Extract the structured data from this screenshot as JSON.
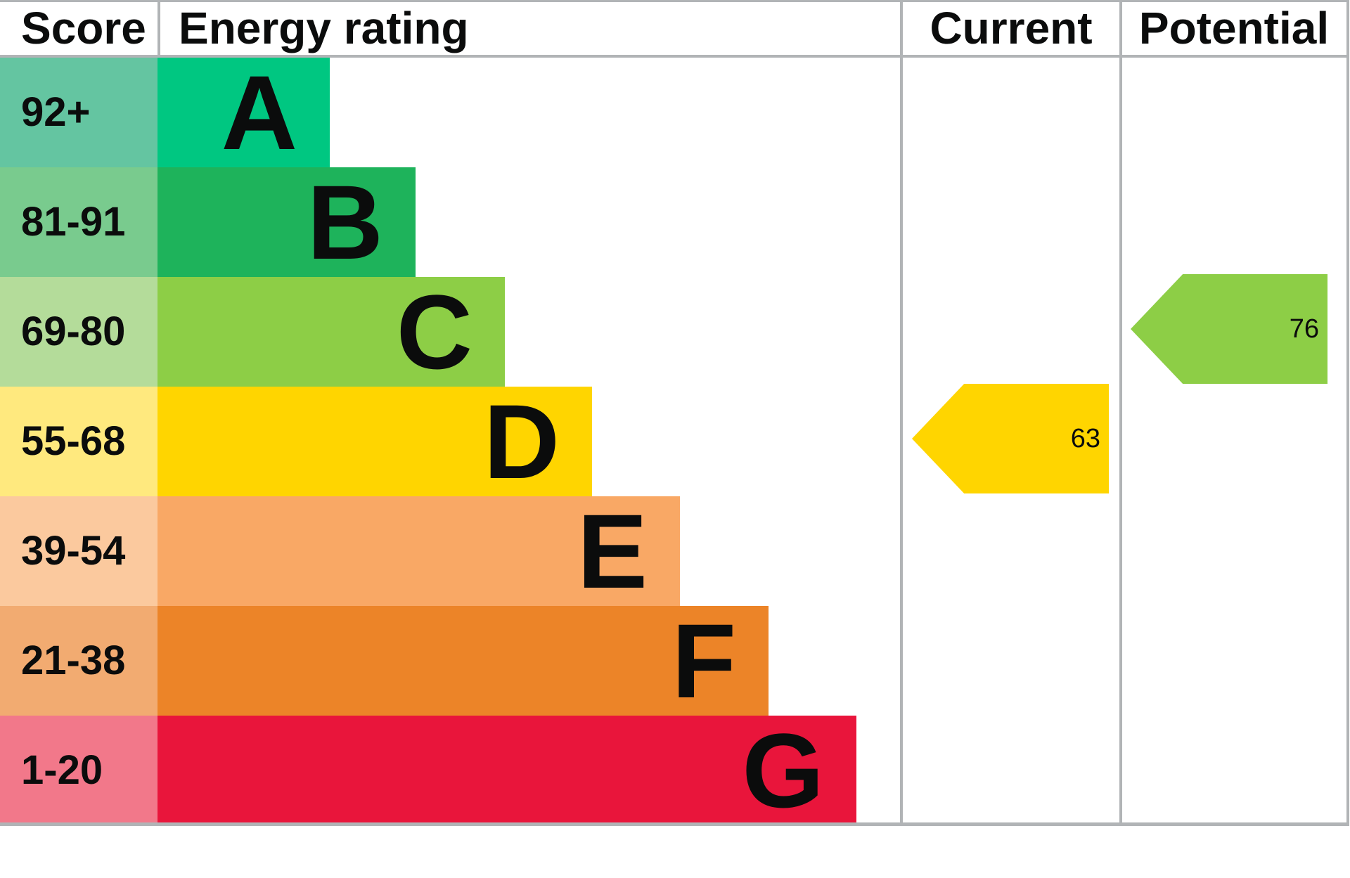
{
  "header": {
    "score": "Score",
    "energy_rating": "Energy rating",
    "current": "Current",
    "potential": "Potential"
  },
  "bands": [
    {
      "score_range": "92+",
      "letter": "A",
      "score_color": "#64c5a1",
      "bar_color": "#00c781"
    },
    {
      "score_range": "81-91",
      "letter": "B",
      "score_color": "#79cb8e",
      "bar_color": "#1eb35b"
    },
    {
      "score_range": "69-80",
      "letter": "C",
      "score_color": "#b4dc9a",
      "bar_color": "#8dce46"
    },
    {
      "score_range": "55-68",
      "letter": "D",
      "score_color": "#ffe97e",
      "bar_color": "#ffd500"
    },
    {
      "score_range": "39-54",
      "letter": "E",
      "score_color": "#fbc99e",
      "bar_color": "#f9a865"
    },
    {
      "score_range": "21-38",
      "letter": "F",
      "score_color": "#f2ab71",
      "bar_color": "#ec8428"
    },
    {
      "score_range": "1-20",
      "letter": "G",
      "score_color": "#f2788a",
      "bar_color": "#e9153b"
    }
  ],
  "current": {
    "value": "63",
    "band": "D",
    "color": "#ffd500"
  },
  "potential": {
    "value": "76",
    "band": "C",
    "color": "#8dce46"
  },
  "colors": {
    "border": "#b1b4b6",
    "text": "#0b0c0c",
    "background": "#ffffff"
  },
  "chart_data": {
    "type": "bar",
    "title": "Energy rating",
    "columns": [
      "Score",
      "Energy rating",
      "Current",
      "Potential"
    ],
    "categories": [
      "A",
      "B",
      "C",
      "D",
      "E",
      "F",
      "G"
    ],
    "score_ranges": [
      "92+",
      "81-91",
      "69-80",
      "55-68",
      "39-54",
      "21-38",
      "1-20"
    ],
    "bar_lengths_relative": [
      1,
      2,
      3,
      4,
      5,
      6,
      7
    ],
    "markers": {
      "current_value": 63,
      "current_band": "D",
      "potential_value": 76,
      "potential_band": "C"
    },
    "legend_position": "none",
    "grid": false
  }
}
